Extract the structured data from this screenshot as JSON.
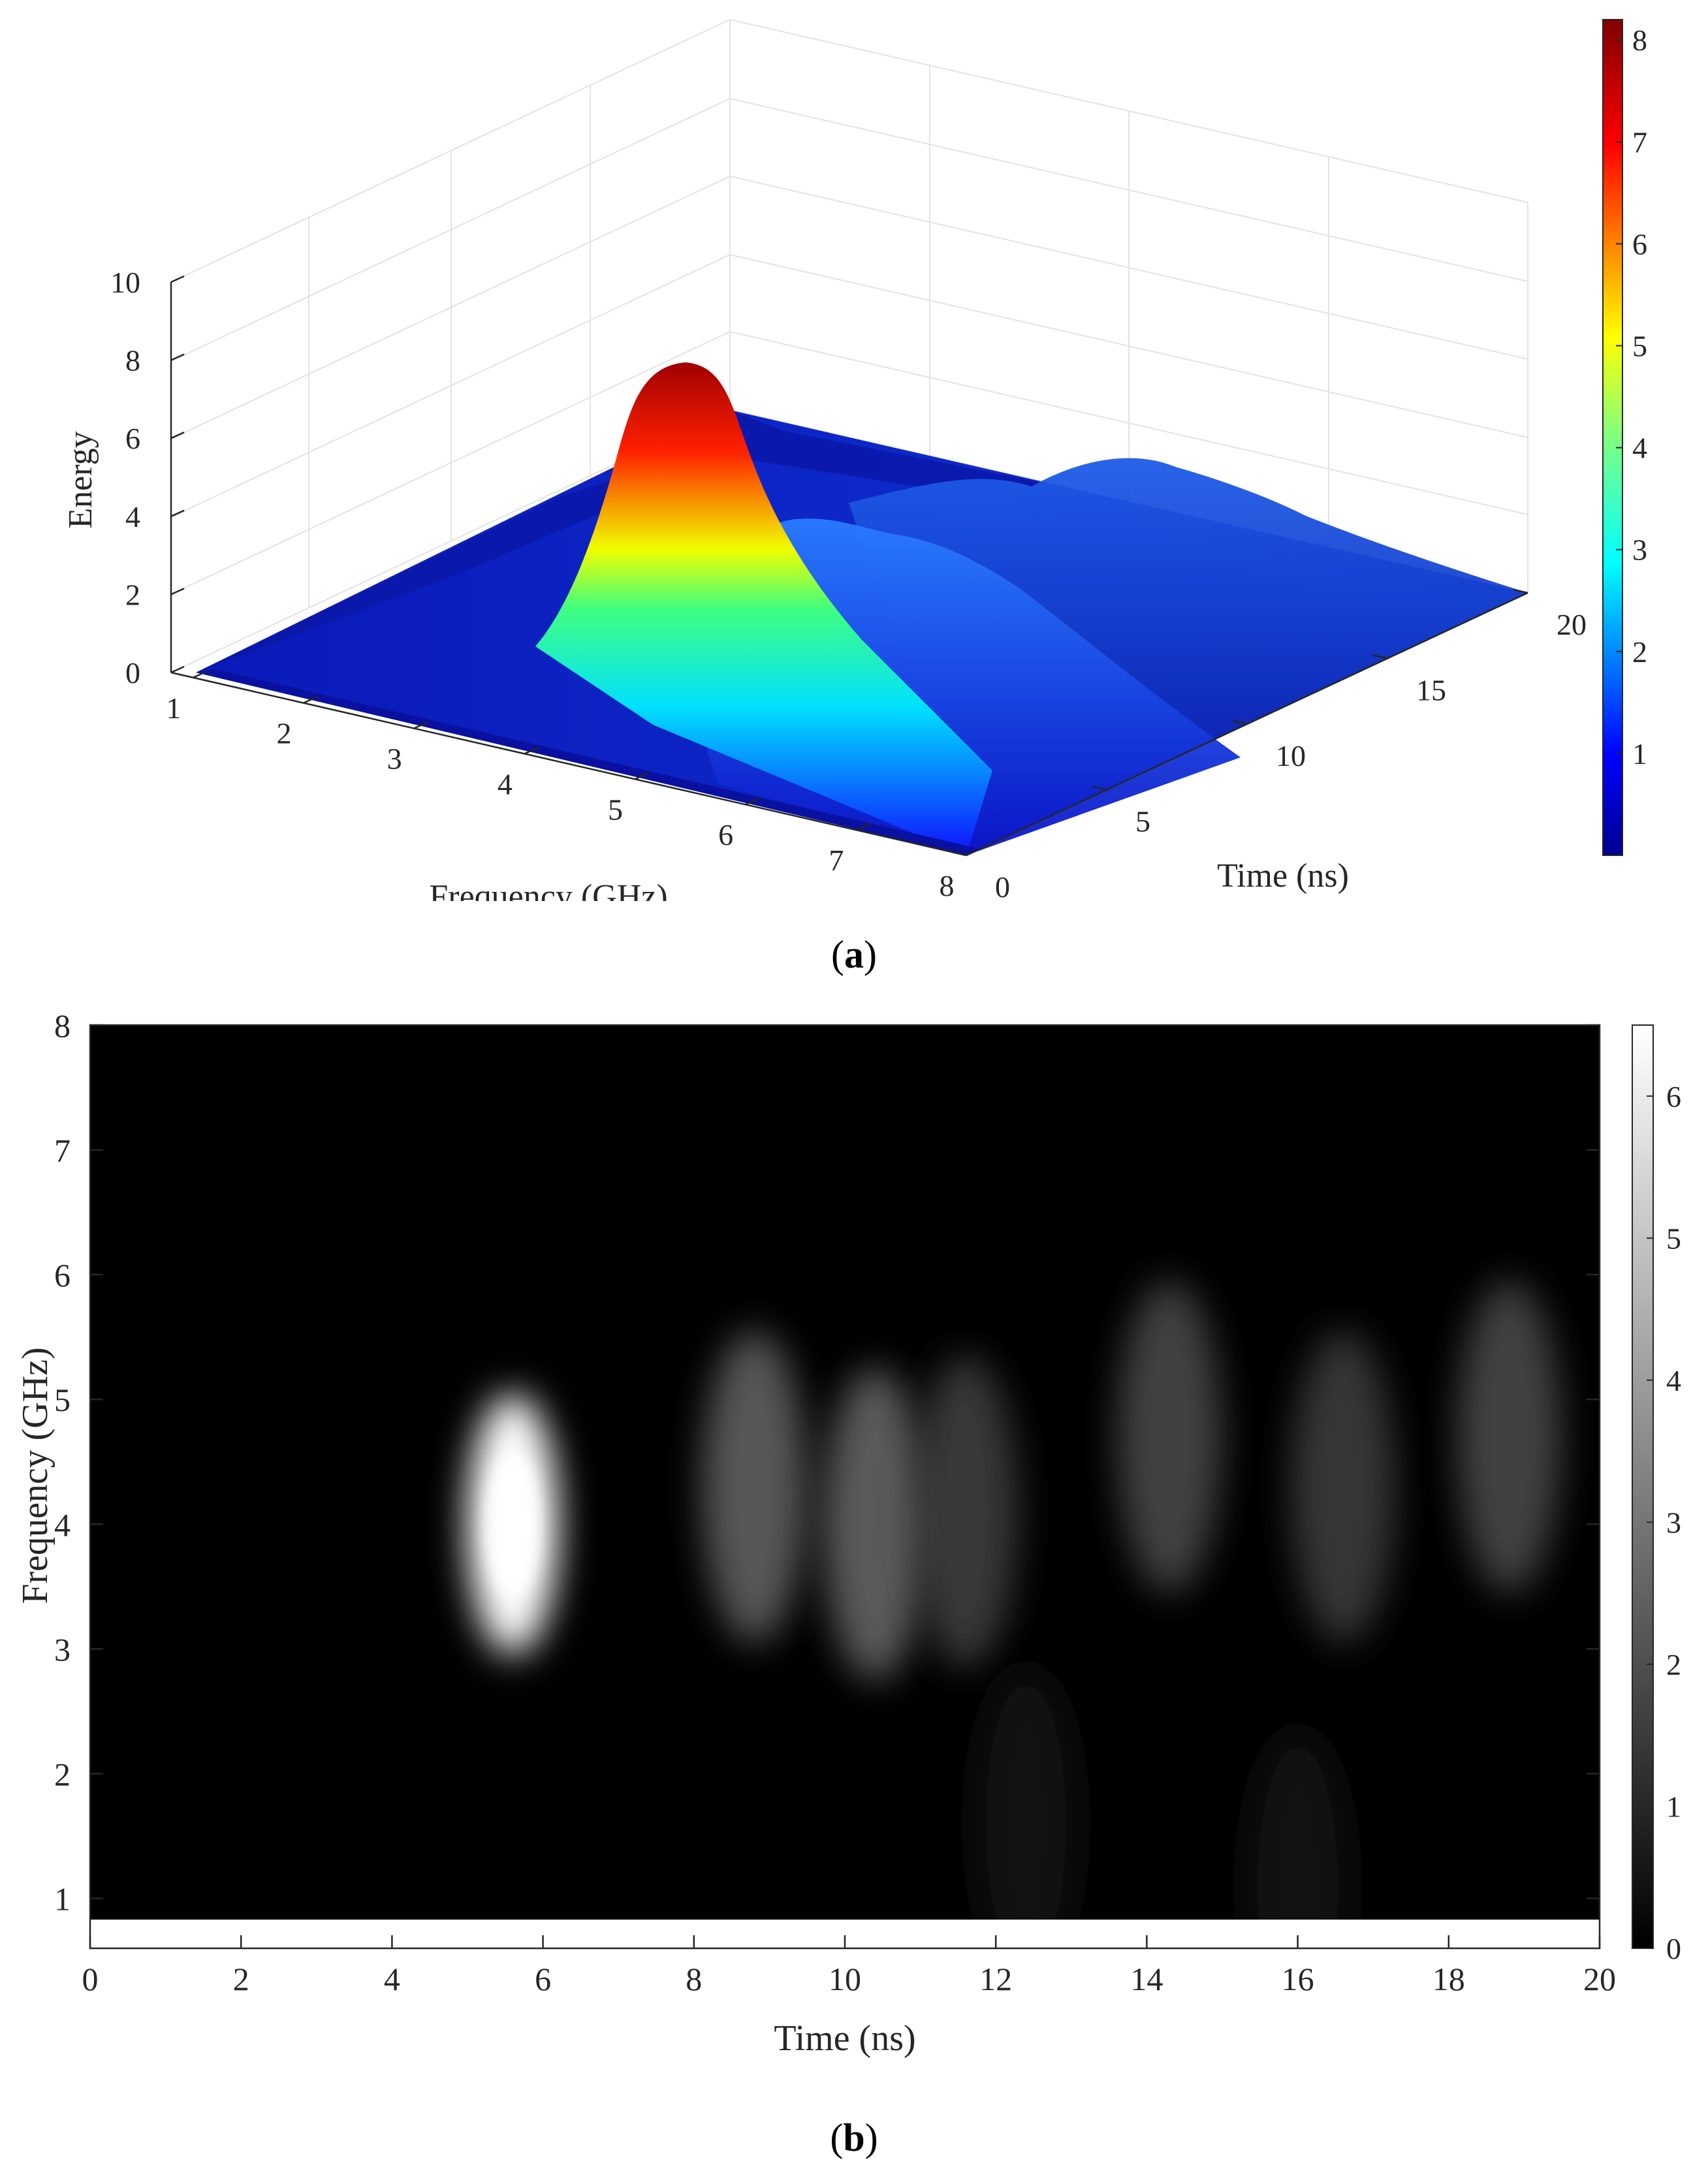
{
  "captions": {
    "a_letter": "a",
    "b_letter": "b"
  },
  "chart_data": [
    {
      "panel": "a",
      "type": "surface3d",
      "zlabel": "Energy",
      "xlabel": "Frequency (GHz)",
      "ylabel": "Time (ns)",
      "xlim": [
        0.8,
        8
      ],
      "ylim": [
        0,
        20
      ],
      "zlim": [
        0,
        10
      ],
      "xticks": [
        1,
        2,
        3,
        4,
        5,
        6,
        7,
        8
      ],
      "yticks": [
        0,
        5,
        10,
        15,
        20
      ],
      "zticks": [
        0,
        2,
        4,
        6,
        8,
        10
      ],
      "colormap": "jet",
      "colorbar": {
        "min": 0,
        "max": 8.2,
        "ticks": [
          1,
          2,
          3,
          4,
          5,
          6,
          7,
          8
        ]
      },
      "peaks": [
        {
          "time_ns": 5.6,
          "freq_ghz": 4.0,
          "energy": 7.7
        },
        {
          "time_ns": 8.8,
          "freq_ghz": 4.2,
          "energy": 2.1
        },
        {
          "time_ns": 10.3,
          "freq_ghz": 4.1,
          "energy": 2.2
        },
        {
          "time_ns": 14.2,
          "freq_ghz": 4.7,
          "energy": 1.3
        },
        {
          "time_ns": 16.5,
          "freq_ghz": 4.4,
          "energy": 1.5
        },
        {
          "time_ns": 18.8,
          "freq_ghz": 4.6,
          "energy": 1.8
        }
      ],
      "grid": true
    },
    {
      "panel": "b",
      "type": "heatmap",
      "xlabel": "Time (ns)",
      "ylabel": "Frequency (GHz)",
      "xlim": [
        0,
        20
      ],
      "ylim": [
        0.6,
        8
      ],
      "xticks": [
        0,
        2,
        4,
        6,
        8,
        10,
        12,
        14,
        16,
        18,
        20
      ],
      "yticks": [
        1,
        2,
        3,
        4,
        5,
        6,
        7,
        8
      ],
      "colormap": "gray",
      "colorbar": {
        "min": 0,
        "max": 6.5,
        "ticks": [
          0,
          1,
          2,
          3,
          4,
          5,
          6
        ]
      },
      "blobs": [
        {
          "time_ns": 5.6,
          "freq_ghz": 4.0,
          "energy": 6.5
        },
        {
          "time_ns": 8.8,
          "freq_ghz": 4.3,
          "energy": 2.6
        },
        {
          "time_ns": 10.4,
          "freq_ghz": 4.0,
          "energy": 2.7
        },
        {
          "time_ns": 11.6,
          "freq_ghz": 4.1,
          "energy": 1.7
        },
        {
          "time_ns": 14.3,
          "freq_ghz": 4.7,
          "energy": 2.0
        },
        {
          "time_ns": 16.6,
          "freq_ghz": 4.3,
          "energy": 1.6
        },
        {
          "time_ns": 18.8,
          "freq_ghz": 4.7,
          "energy": 2.0
        },
        {
          "time_ns": 12.4,
          "freq_ghz": 1.6,
          "energy": 0.6
        },
        {
          "time_ns": 16.0,
          "freq_ghz": 1.1,
          "energy": 0.6
        }
      ]
    }
  ]
}
